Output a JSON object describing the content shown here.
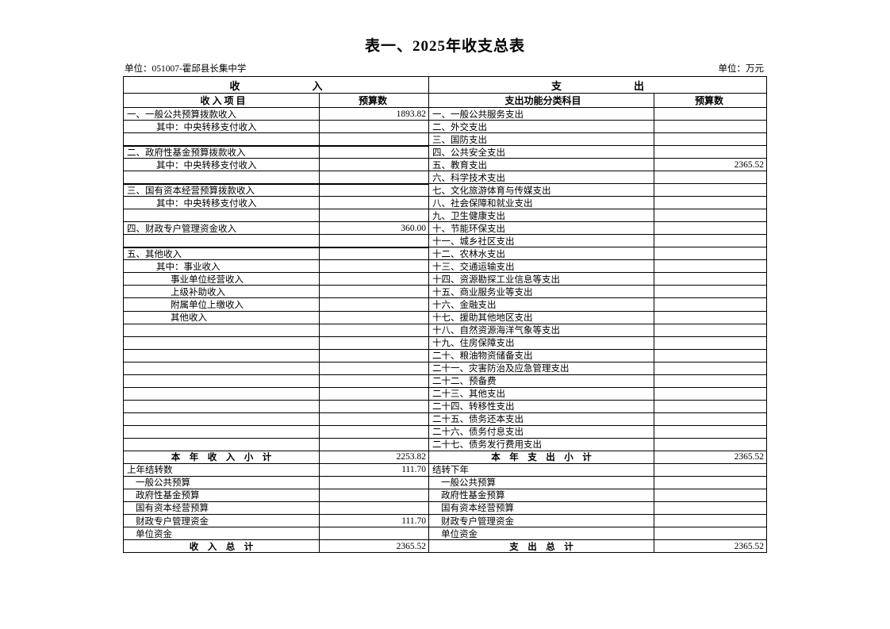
{
  "page": {
    "title": "表一、2025年收支总表",
    "unit_label_left": "单位：051007-霍邱县长集中学",
    "unit_label_right": "单位：万元"
  },
  "colors": {
    "background": "#ffffff",
    "text": "#000000",
    "border": "#000000"
  },
  "table": {
    "header": {
      "income_group": "收　　　　　　　入",
      "expense_group": "支　　　　　　　出",
      "income_item_col": "收 入 项 目",
      "income_budget_col": "预算数",
      "expense_item_col": "支出功能分类科目",
      "expense_budget_col": "预算数"
    },
    "rows": [
      {
        "i": "一、一般公共预算拨款收入",
        "iv": "1893.82",
        "e": "一、一般公共服务支出"
      },
      {
        "i": "其中：中央转移支付收入",
        "ind": "1",
        "e": "二、外交支出"
      },
      {
        "e": "三、国防支出"
      },
      {
        "i": "二、政府性基金预算拨款收入",
        "sep": true,
        "e": "四、公共安全支出"
      },
      {
        "i": "其中：中央转移支付收入",
        "ind": "1",
        "e": "五、教育支出",
        "ev": "2365.52"
      },
      {
        "e": "六、科学技术支出"
      },
      {
        "i": "三、国有资本经营预算拨款收入",
        "sep": true,
        "e": "七、文化旅游体育与传媒支出"
      },
      {
        "i": "其中：中央转移支付收入",
        "ind": "1",
        "e": "八、社会保障和就业支出"
      },
      {
        "e": "九、卫生健康支出"
      },
      {
        "i": "四、财政专户管理资金收入",
        "iv": "360.00",
        "e": "十、节能环保支出"
      },
      {
        "e": "十一、城乡社区支出"
      },
      {
        "i": "五、其他收入",
        "sep": true,
        "e": "十二、农林水支出"
      },
      {
        "i": "其中：事业收入",
        "ind": "1",
        "e": "十三、交通运输支出"
      },
      {
        "i": "事业单位经营收入",
        "ind": "2",
        "e": "十四、资源勘探工业信息等支出"
      },
      {
        "i": "上级补助收入",
        "ind": "2",
        "e": "十五、商业服务业等支出"
      },
      {
        "i": "附属单位上缴收入",
        "ind": "2",
        "e": "十六、金融支出"
      },
      {
        "i": "其他收入",
        "ind": "2",
        "e": "十七、援助其他地区支出"
      },
      {
        "e": "十八、自然资源海洋气象等支出"
      },
      {
        "e": "十九、住房保障支出"
      },
      {
        "e": "二十、粮油物资储备支出"
      },
      {
        "e": "二十一、灾害防治及应急管理支出"
      },
      {
        "e": "二十二、预备费"
      },
      {
        "e": "二十三、其他支出"
      },
      {
        "e": "二十四、转移性支出"
      },
      {
        "e": "二十五、债务还本支出"
      },
      {
        "e": "二十六、债务付息支出"
      },
      {
        "e": "二十七、债务发行费用支出"
      },
      {
        "kind": "subtotal",
        "i": "本　年　收　入　小　计",
        "iv": "2253.82",
        "e": "本　年　支　出　小　计",
        "ev": "2365.52"
      },
      {
        "i": "上年结转数",
        "iv": "111.70",
        "e": "结转下年"
      },
      {
        "i": "一般公共预算",
        "ind": "s",
        "e": "一般公共预算",
        "eind": "s"
      },
      {
        "i": "政府性基金预算",
        "ind": "s",
        "e": "政府性基金预算",
        "eind": "s"
      },
      {
        "i": "国有资本经营预算",
        "ind": "s",
        "e": "国有资本经营预算",
        "eind": "s"
      },
      {
        "i": "财政专户管理资金",
        "ind": "s",
        "iv": "111.70",
        "e": "财政专户管理资金",
        "eind": "s"
      },
      {
        "i": "单位资金",
        "ind": "s",
        "e": "单位资金",
        "eind": "s"
      },
      {
        "kind": "total",
        "i": "收　入　总　计",
        "iv": "2365.52",
        "e": "支　出　总　计",
        "ev": "2365.52"
      }
    ]
  }
}
